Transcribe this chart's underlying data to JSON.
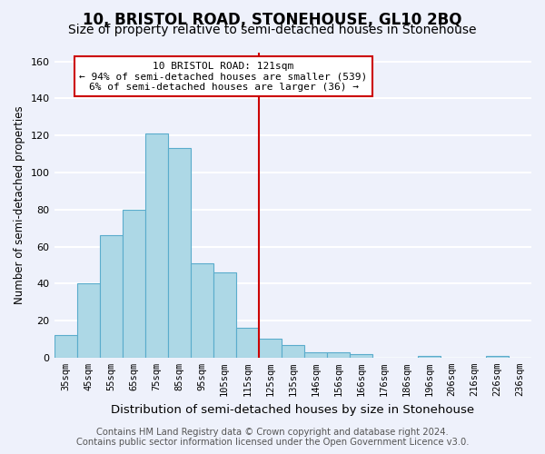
{
  "title": "10, BRISTOL ROAD, STONEHOUSE, GL10 2BQ",
  "subtitle": "Size of property relative to semi-detached houses in Stonehouse",
  "xlabel": "Distribution of semi-detached houses by size in Stonehouse",
  "ylabel": "Number of semi-detached properties",
  "categories": [
    "35sqm",
    "45sqm",
    "55sqm",
    "65sqm",
    "75sqm",
    "85sqm",
    "95sqm",
    "105sqm",
    "115sqm",
    "125sqm",
    "135sqm",
    "146sqm",
    "156sqm",
    "166sqm",
    "176sqm",
    "186sqm",
    "196sqm",
    "206sqm",
    "216sqm",
    "226sqm",
    "236sqm"
  ],
  "values": [
    12,
    40,
    66,
    80,
    121,
    113,
    51,
    46,
    16,
    10,
    7,
    3,
    3,
    2,
    0,
    0,
    1,
    0,
    0,
    1,
    0
  ],
  "bar_color": "#add8e6",
  "bar_edge_color": "#5aaccc",
  "vline_color": "#cc0000",
  "annotation_title": "10 BRISTOL ROAD: 121sqm",
  "annotation_line1": "← 94% of semi-detached houses are smaller (539)",
  "annotation_line2": "6% of semi-detached houses are larger (36) →",
  "annotation_box_color": "#ffffff",
  "annotation_box_edge": "#cc0000",
  "ylim": [
    0,
    165
  ],
  "yticks": [
    0,
    20,
    40,
    60,
    80,
    100,
    120,
    140,
    160
  ],
  "footer1": "Contains HM Land Registry data © Crown copyright and database right 2024.",
  "footer2": "Contains public sector information licensed under the Open Government Licence v3.0.",
  "bg_color": "#eef1fb",
  "grid_color": "#ffffff",
  "title_fontsize": 12,
  "subtitle_fontsize": 10,
  "xlabel_fontsize": 9.5,
  "ylabel_fontsize": 8.5,
  "footer_fontsize": 7.2,
  "vline_bar_index": 8.5
}
